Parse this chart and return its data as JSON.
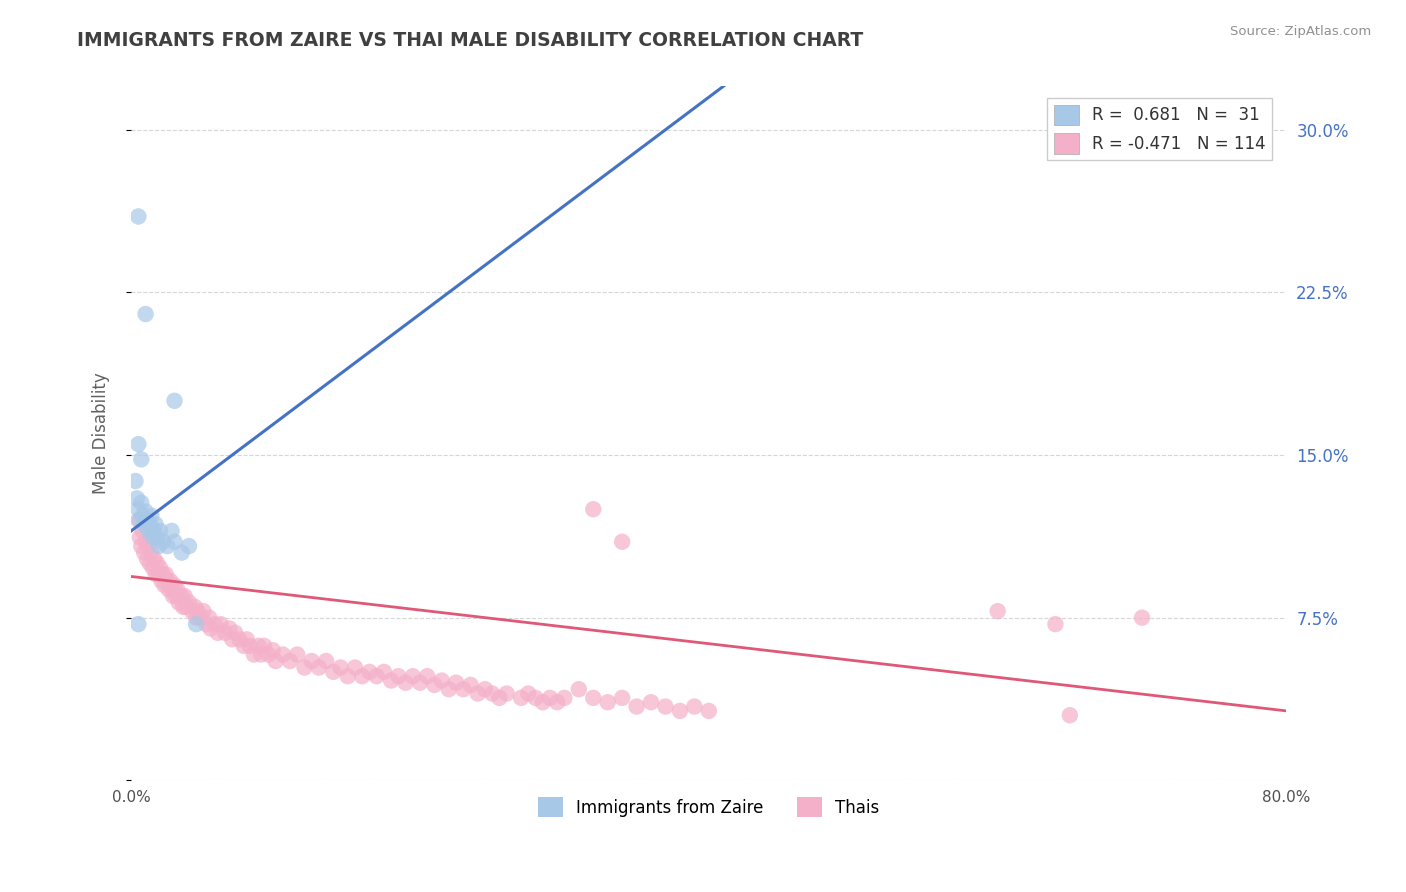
{
  "title": "IMMIGRANTS FROM ZAIRE VS THAI MALE DISABILITY CORRELATION CHART",
  "source": "Source: ZipAtlas.com",
  "ylabel": "Male Disability",
  "xlim": [
    0.0,
    0.8
  ],
  "ylim": [
    0.0,
    0.32
  ],
  "yticks": [
    0.0,
    0.075,
    0.15,
    0.225,
    0.3
  ],
  "ytick_labels": [
    "",
    "7.5%",
    "15.0%",
    "22.5%",
    "30.0%"
  ],
  "xticks": [
    0.0,
    0.1,
    0.2,
    0.3,
    0.4,
    0.5,
    0.6,
    0.7,
    0.8
  ],
  "xtick_labels": [
    "0.0%",
    "",
    "",
    "",
    "",
    "",
    "",
    "",
    "80.0%"
  ],
  "zaire_color": "#a8c8e8",
  "thai_color": "#f4b0c8",
  "zaire_line_color": "#4472c4",
  "thai_line_color": "#e05878",
  "zaire_R": 0.681,
  "zaire_N": 31,
  "thai_R": -0.471,
  "thai_N": 114,
  "legend_label_zaire": "Immigrants from Zaire",
  "legend_label_thai": "Thais",
  "background_color": "#ffffff",
  "grid_color": "#cccccc",
  "title_color": "#404040",
  "axis_label_color": "#606060",
  "right_tick_color": "#4472c4",
  "zaire_line": [
    [
      0.0,
      0.115
    ],
    [
      0.44,
      0.335
    ]
  ],
  "thai_line": [
    [
      0.0,
      0.094
    ],
    [
      0.8,
      0.032
    ]
  ],
  "zaire_points": [
    [
      0.005,
      0.26
    ],
    [
      0.01,
      0.215
    ],
    [
      0.005,
      0.155
    ],
    [
      0.007,
      0.148
    ],
    [
      0.003,
      0.138
    ],
    [
      0.004,
      0.13
    ],
    [
      0.005,
      0.125
    ],
    [
      0.006,
      0.12
    ],
    [
      0.007,
      0.128
    ],
    [
      0.008,
      0.122
    ],
    [
      0.009,
      0.118
    ],
    [
      0.01,
      0.124
    ],
    [
      0.011,
      0.12
    ],
    [
      0.012,
      0.115
    ],
    [
      0.013,
      0.118
    ],
    [
      0.014,
      0.122
    ],
    [
      0.015,
      0.112
    ],
    [
      0.016,
      0.115
    ],
    [
      0.017,
      0.118
    ],
    [
      0.018,
      0.112
    ],
    [
      0.019,
      0.108
    ],
    [
      0.02,
      0.115
    ],
    [
      0.022,
      0.11
    ],
    [
      0.025,
      0.108
    ],
    [
      0.028,
      0.115
    ],
    [
      0.03,
      0.11
    ],
    [
      0.035,
      0.105
    ],
    [
      0.04,
      0.108
    ],
    [
      0.005,
      0.072
    ],
    [
      0.03,
      0.175
    ],
    [
      0.045,
      0.072
    ]
  ],
  "thai_points": [
    [
      0.005,
      0.12
    ],
    [
      0.006,
      0.112
    ],
    [
      0.007,
      0.108
    ],
    [
      0.008,
      0.115
    ],
    [
      0.009,
      0.105
    ],
    [
      0.01,
      0.11
    ],
    [
      0.011,
      0.102
    ],
    [
      0.012,
      0.108
    ],
    [
      0.013,
      0.1
    ],
    [
      0.014,
      0.105
    ],
    [
      0.015,
      0.098
    ],
    [
      0.016,
      0.102
    ],
    [
      0.017,
      0.095
    ],
    [
      0.018,
      0.1
    ],
    [
      0.019,
      0.095
    ],
    [
      0.02,
      0.098
    ],
    [
      0.021,
      0.092
    ],
    [
      0.022,
      0.095
    ],
    [
      0.023,
      0.09
    ],
    [
      0.024,
      0.095
    ],
    [
      0.025,
      0.092
    ],
    [
      0.026,
      0.088
    ],
    [
      0.027,
      0.092
    ],
    [
      0.028,
      0.088
    ],
    [
      0.029,
      0.085
    ],
    [
      0.03,
      0.09
    ],
    [
      0.031,
      0.085
    ],
    [
      0.032,
      0.088
    ],
    [
      0.033,
      0.082
    ],
    [
      0.035,
      0.085
    ],
    [
      0.036,
      0.08
    ],
    [
      0.037,
      0.085
    ],
    [
      0.038,
      0.08
    ],
    [
      0.04,
      0.082
    ],
    [
      0.042,
      0.078
    ],
    [
      0.044,
      0.08
    ],
    [
      0.045,
      0.075
    ],
    [
      0.046,
      0.078
    ],
    [
      0.048,
      0.075
    ],
    [
      0.05,
      0.078
    ],
    [
      0.052,
      0.072
    ],
    [
      0.054,
      0.075
    ],
    [
      0.055,
      0.07
    ],
    [
      0.058,
      0.072
    ],
    [
      0.06,
      0.068
    ],
    [
      0.062,
      0.072
    ],
    [
      0.065,
      0.068
    ],
    [
      0.068,
      0.07
    ],
    [
      0.07,
      0.065
    ],
    [
      0.072,
      0.068
    ],
    [
      0.075,
      0.065
    ],
    [
      0.078,
      0.062
    ],
    [
      0.08,
      0.065
    ],
    [
      0.082,
      0.062
    ],
    [
      0.085,
      0.058
    ],
    [
      0.088,
      0.062
    ],
    [
      0.09,
      0.058
    ],
    [
      0.092,
      0.062
    ],
    [
      0.095,
      0.058
    ],
    [
      0.098,
      0.06
    ],
    [
      0.1,
      0.055
    ],
    [
      0.105,
      0.058
    ],
    [
      0.11,
      0.055
    ],
    [
      0.115,
      0.058
    ],
    [
      0.12,
      0.052
    ],
    [
      0.125,
      0.055
    ],
    [
      0.13,
      0.052
    ],
    [
      0.135,
      0.055
    ],
    [
      0.14,
      0.05
    ],
    [
      0.145,
      0.052
    ],
    [
      0.15,
      0.048
    ],
    [
      0.155,
      0.052
    ],
    [
      0.16,
      0.048
    ],
    [
      0.165,
      0.05
    ],
    [
      0.17,
      0.048
    ],
    [
      0.175,
      0.05
    ],
    [
      0.18,
      0.046
    ],
    [
      0.185,
      0.048
    ],
    [
      0.19,
      0.045
    ],
    [
      0.195,
      0.048
    ],
    [
      0.2,
      0.045
    ],
    [
      0.205,
      0.048
    ],
    [
      0.21,
      0.044
    ],
    [
      0.215,
      0.046
    ],
    [
      0.22,
      0.042
    ],
    [
      0.225,
      0.045
    ],
    [
      0.23,
      0.042
    ],
    [
      0.235,
      0.044
    ],
    [
      0.24,
      0.04
    ],
    [
      0.245,
      0.042
    ],
    [
      0.25,
      0.04
    ],
    [
      0.255,
      0.038
    ],
    [
      0.26,
      0.04
    ],
    [
      0.27,
      0.038
    ],
    [
      0.275,
      0.04
    ],
    [
      0.28,
      0.038
    ],
    [
      0.285,
      0.036
    ],
    [
      0.29,
      0.038
    ],
    [
      0.295,
      0.036
    ],
    [
      0.3,
      0.038
    ],
    [
      0.31,
      0.042
    ],
    [
      0.32,
      0.038
    ],
    [
      0.33,
      0.036
    ],
    [
      0.34,
      0.038
    ],
    [
      0.35,
      0.034
    ],
    [
      0.36,
      0.036
    ],
    [
      0.37,
      0.034
    ],
    [
      0.38,
      0.032
    ],
    [
      0.39,
      0.034
    ],
    [
      0.4,
      0.032
    ],
    [
      0.32,
      0.125
    ],
    [
      0.34,
      0.11
    ],
    [
      0.6,
      0.078
    ],
    [
      0.64,
      0.072
    ],
    [
      0.65,
      0.03
    ],
    [
      0.7,
      0.075
    ]
  ]
}
